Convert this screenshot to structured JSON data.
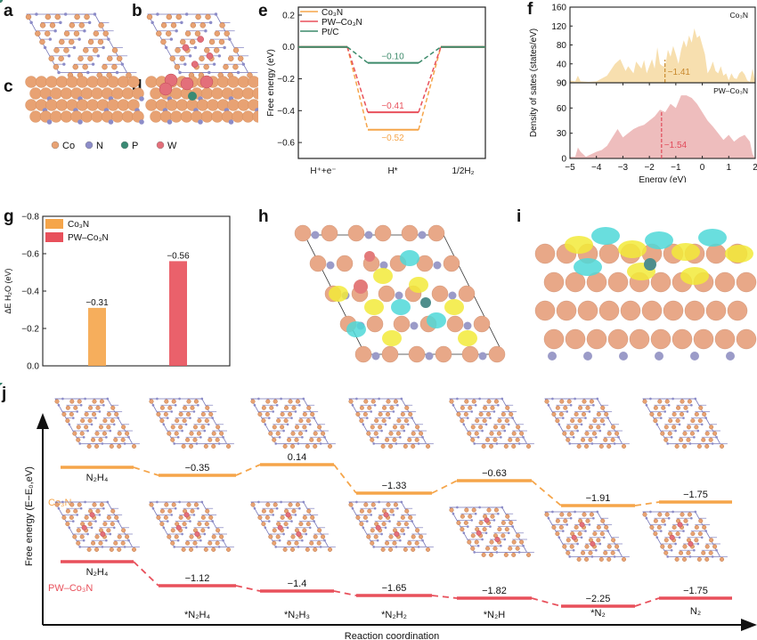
{
  "panel_labels": [
    "a",
    "b",
    "c",
    "d",
    "e",
    "f",
    "g",
    "h",
    "i",
    "j"
  ],
  "legend_atoms": [
    {
      "symbol": "Co",
      "color": "#e8a273"
    },
    {
      "symbol": "N",
      "color": "#8c8cc8"
    },
    {
      "symbol": "P",
      "color": "#3a8a74"
    },
    {
      "symbol": "W",
      "color": "#e36f7a"
    }
  ],
  "colors": {
    "co3n": "#f5a54a",
    "pw": "#e8505b",
    "ptc": "#3c8a6a",
    "dos_co3n": "#f7dfaf",
    "dos_pw": "#eebdbd",
    "dband_co3n": "#c8892e",
    "dband_pw": "#e14a5a"
  },
  "chart_data": [
    {
      "id": "e",
      "type": "line",
      "title": "",
      "ylabel": "Free energy (eV)",
      "xlabel": "",
      "categories": [
        "H⁺+e⁻",
        "H*",
        "1/2H₂"
      ],
      "ylim": [
        -0.7,
        0.25
      ],
      "yticks": [
        0.2,
        0.0,
        -0.2,
        -0.4,
        -0.6
      ],
      "ytick_labels": [
        "0.2",
        "0.0",
        "−0.2",
        "−0.4",
        "−0.6"
      ],
      "legend": "top-left",
      "series": [
        {
          "name": "Co₃N",
          "values": [
            0,
            -0.52,
            0
          ],
          "label": "−0.52",
          "color": "#f5a54a"
        },
        {
          "name": "PW–Co₃N",
          "values": [
            0,
            -0.41,
            0
          ],
          "label": "−0.41",
          "color": "#e8505b"
        },
        {
          "name": "Pt/C",
          "values": [
            0,
            -0.1,
            0
          ],
          "label": "−0.10",
          "color": "#3c8a6a"
        }
      ]
    },
    {
      "id": "f",
      "type": "area",
      "ylabel": "Density of sates (states/eV)",
      "xlabel": "Energy (eV)",
      "xlim": [
        -5,
        2
      ],
      "xticks": [
        -5,
        -4,
        -3,
        -2,
        -1,
        0,
        1,
        2
      ],
      "xtick_labels": [
        "−5",
        "−4",
        "−3",
        "−2",
        "−1",
        "0",
        "1",
        "2"
      ],
      "panels": [
        {
          "name": "Co₃N",
          "ylim": [
            0,
            160
          ],
          "yticks": [
            0,
            40,
            80,
            120,
            160
          ],
          "d_band_center": -1.41,
          "d_band_label": "−1.41",
          "x": [
            -5,
            -4.8,
            -4.7,
            -4.6,
            -4.3,
            -4,
            -3.6,
            -3.3,
            -3.1,
            -2.9,
            -2.8,
            -2.6,
            -2.5,
            -2.3,
            -2.2,
            -2.1,
            -1.9,
            -1.8,
            -1.7,
            -1.6,
            -1.5,
            -1.4,
            -1.3,
            -1.2,
            -1.1,
            -1.0,
            -0.9,
            -0.8,
            -0.7,
            -0.6,
            -0.5,
            -0.4,
            -0.3,
            -0.2,
            -0.1,
            0,
            0.1,
            0.2,
            0.3,
            0.4,
            0.5,
            0.6,
            0.7,
            0.8,
            0.9,
            1.0,
            1.1,
            1.2,
            1.3,
            1.4,
            1.5,
            1.6,
            1.7,
            1.8,
            1.9,
            2.0
          ],
          "y": [
            5,
            3,
            15,
            3,
            2,
            3,
            15,
            40,
            50,
            25,
            35,
            20,
            45,
            30,
            48,
            20,
            50,
            30,
            75,
            40,
            35,
            35,
            70,
            55,
            78,
            60,
            40,
            70,
            90,
            75,
            100,
            85,
            115,
            95,
            100,
            80,
            60,
            20,
            30,
            45,
            25,
            20,
            35,
            15,
            20,
            5,
            20,
            10,
            8,
            20,
            25,
            18,
            5,
            2,
            30,
            3
          ]
        },
        {
          "name": "PW–Co₃N",
          "ylim": [
            0,
            90
          ],
          "yticks": [
            0,
            30,
            60,
            90
          ],
          "d_band_center": -1.54,
          "d_band_label": "−1.54",
          "x": [
            -5,
            -4.8,
            -4.7,
            -4.6,
            -4.4,
            -4.2,
            -4,
            -3.8,
            -3.6,
            -3.4,
            -3.2,
            -3.0,
            -2.8,
            -2.6,
            -2.4,
            -2.2,
            -2.0,
            -1.8,
            -1.6,
            -1.4,
            -1.2,
            -1.0,
            -0.8,
            -0.6,
            -0.4,
            -0.2,
            0,
            0.2,
            0.4,
            0.6,
            0.8,
            1.0,
            1.2,
            1.4,
            1.6,
            1.8,
            1.9,
            2.0
          ],
          "y": [
            2,
            2,
            13,
            8,
            2,
            5,
            8,
            10,
            15,
            25,
            35,
            25,
            30,
            35,
            38,
            40,
            45,
            50,
            58,
            55,
            65,
            60,
            75,
            75,
            72,
            65,
            55,
            45,
            38,
            30,
            22,
            28,
            20,
            25,
            28,
            20,
            5,
            0
          ]
        }
      ]
    },
    {
      "id": "g",
      "type": "bar",
      "ylabel": "ΔE H₂O (eV)",
      "ylim": [
        0,
        -0.8
      ],
      "yticks": [
        0.0,
        -0.2,
        -0.4,
        -0.6,
        -0.8
      ],
      "ytick_labels": [
        "0.0",
        "−0.2",
        "−0.4",
        "−0.6",
        "−0.8"
      ],
      "legend": "top-left",
      "categories": [
        "Co₃N",
        "PW–Co₃N"
      ],
      "values": [
        -0.31,
        -0.56
      ],
      "value_labels": [
        "−0.31",
        "−0.56"
      ],
      "colors": [
        "#f5a54a",
        "#e8505b"
      ]
    },
    {
      "id": "j",
      "type": "line",
      "ylabel": "Free energy (E−E₀,eV)",
      "xlabel": "Reaction coordination",
      "categories": [
        "N₂H₄",
        "*N₂H₄",
        "*N₂H₃",
        "*N₂H₂",
        "*N₂H",
        "*N₂",
        "N₂"
      ],
      "series": [
        {
          "name": "Co₃N",
          "values": [
            0,
            -0.35,
            0.14,
            -1.33,
            -0.63,
            -1.91,
            -1.75
          ],
          "labels": [
            "N₂H₄",
            "−0.35",
            "0.14",
            "−1.33",
            "−0.63",
            "−1.91",
            "−1.75"
          ],
          "color": "#f5a54a"
        },
        {
          "name": "PW–Co₃N",
          "values": [
            0,
            -1.12,
            -1.4,
            -1.65,
            -1.82,
            -2.25,
            -1.75
          ],
          "labels": [
            "N₂H₄",
            "−1.12",
            "−1.4",
            "−1.65",
            "−1.82",
            "−2.25",
            "−1.75"
          ],
          "color": "#e8505b"
        }
      ]
    }
  ]
}
